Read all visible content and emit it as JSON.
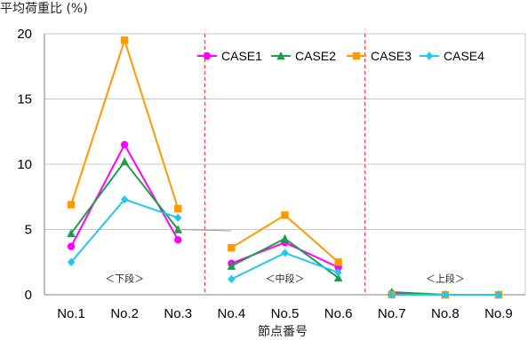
{
  "chart_data": {
    "type": "line",
    "title": "",
    "ylabel": "平均荷重比 (%)",
    "xlabel": "節点番号",
    "ylim": [
      0,
      20
    ],
    "yticks": [
      "0",
      "5",
      "10",
      "15",
      "20"
    ],
    "categories": [
      "No.1",
      "No.2",
      "No.3",
      "No.4",
      "No.5",
      "No.6",
      "No.7",
      "No.8",
      "No.9"
    ],
    "grid": "horizontal",
    "legend_position": "top-right",
    "section_labels": [
      "＜下段＞",
      "＜中段＞",
      "＜上段＞"
    ],
    "series": [
      {
        "name": "CASE1",
        "color": "#ff00ff",
        "marker": "circle",
        "values": [
          3.7,
          11.5,
          4.2,
          2.4,
          4.0,
          2.1,
          0.1,
          0.0,
          0.0
        ]
      },
      {
        "name": "CASE2",
        "color": "#1e9e4a",
        "marker": "triangle",
        "values": [
          4.7,
          10.2,
          5.0,
          2.2,
          4.3,
          1.3,
          0.2,
          0.0,
          0.0
        ]
      },
      {
        "name": "CASE3",
        "color": "#ff9900",
        "marker": "square",
        "values": [
          6.9,
          19.5,
          6.6,
          3.6,
          6.1,
          2.5,
          0.0,
          0.0,
          0.0
        ]
      },
      {
        "name": "CASE4",
        "color": "#1ec8f0",
        "marker": "diamond",
        "values": [
          2.5,
          7.3,
          5.9,
          1.2,
          3.2,
          1.7,
          0.0,
          0.0,
          0.0
        ]
      }
    ],
    "divider_color": "#ff2020"
  }
}
